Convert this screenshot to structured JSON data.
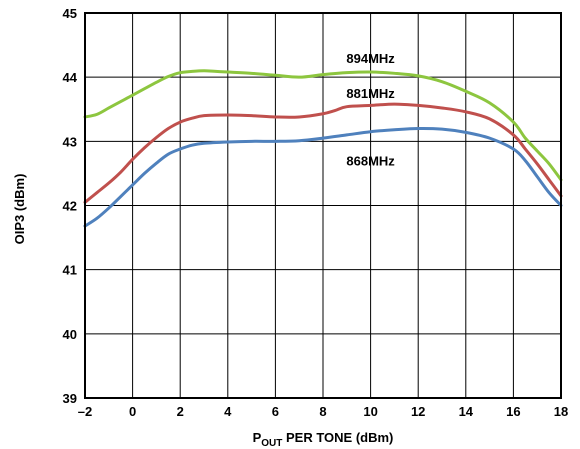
{
  "chart_data": {
    "type": "line",
    "title": "",
    "xlabel": {
      "main": "P",
      "sub": "OUT",
      "rest": " PER TONE (dBm)"
    },
    "ylabel": "OIP3 (dBm)",
    "xlim": [
      -2,
      18
    ],
    "ylim": [
      39,
      45
    ],
    "xticks": [
      "–2",
      "0",
      "2",
      "4",
      "6",
      "8",
      "10",
      "12",
      "14",
      "16",
      "18"
    ],
    "yticks": [
      "39",
      "40",
      "41",
      "42",
      "43",
      "44",
      "45"
    ],
    "grid": true,
    "series": [
      {
        "name": "894MHz",
        "color": "#8dc63f",
        "label_at": [
          10,
          44.3
        ],
        "x": [
          -2,
          -1.5,
          -1,
          -0.5,
          0,
          0.5,
          1,
          1.5,
          2,
          2.5,
          3,
          3.5,
          4,
          5,
          6,
          7,
          8,
          9,
          10,
          11,
          12,
          13,
          14,
          15,
          16,
          16.5,
          17,
          17.5,
          18
        ],
        "y": [
          43.38,
          43.42,
          43.52,
          43.62,
          43.72,
          43.82,
          43.92,
          44.01,
          44.07,
          44.09,
          44.1,
          44.09,
          44.08,
          44.06,
          44.03,
          44.0,
          44.04,
          44.07,
          44.08,
          44.06,
          44.02,
          43.93,
          43.78,
          43.6,
          43.3,
          43.05,
          42.85,
          42.65,
          42.4
        ]
      },
      {
        "name": "881MHz",
        "color": "#c0504d",
        "label_at": [
          10,
          43.75
        ],
        "x": [
          -2,
          -1.5,
          -1,
          -0.5,
          0,
          0.5,
          1,
          1.5,
          2,
          2.5,
          3,
          4,
          5,
          6,
          7,
          8,
          8.5,
          9,
          10,
          11,
          12,
          13,
          14,
          15,
          16,
          16.5,
          17,
          17.5,
          18
        ],
        "y": [
          42.05,
          42.2,
          42.35,
          42.52,
          42.72,
          42.9,
          43.06,
          43.2,
          43.3,
          43.36,
          43.4,
          43.41,
          43.4,
          43.38,
          43.38,
          43.43,
          43.48,
          43.54,
          43.56,
          43.58,
          43.56,
          43.52,
          43.46,
          43.35,
          43.1,
          42.88,
          42.65,
          42.4,
          42.15
        ]
      },
      {
        "name": "868MHz",
        "color": "#4f81bd",
        "label_at": [
          10,
          42.7
        ],
        "x": [
          -2,
          -1.5,
          -1,
          -0.5,
          0,
          0.5,
          1,
          1.5,
          2,
          2.5,
          3,
          4,
          5,
          6,
          7,
          8,
          9,
          10,
          11,
          12,
          13,
          14,
          15,
          16,
          16.5,
          17,
          17.5,
          18
        ],
        "y": [
          41.68,
          41.8,
          41.96,
          42.14,
          42.32,
          42.5,
          42.66,
          42.8,
          42.88,
          42.94,
          42.97,
          42.99,
          43.0,
          43.0,
          43.01,
          43.05,
          43.1,
          43.15,
          43.18,
          43.2,
          43.19,
          43.14,
          43.05,
          42.88,
          42.7,
          42.45,
          42.2,
          42.0
        ]
      }
    ]
  }
}
